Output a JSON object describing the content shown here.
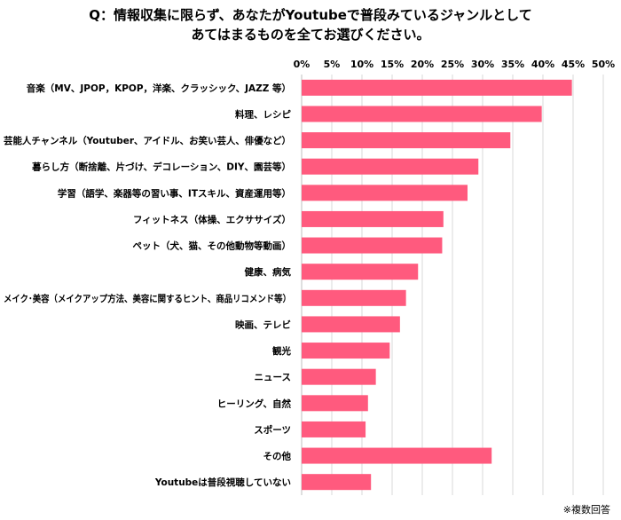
{
  "title_line1": "Q：情報収集に限らず、あなたがYoutubeで普段みているジャンルとして",
  "title_line2": "あてはまるものを全てお選びください。",
  "note": "※複数回答",
  "bar_color": "#ff5a7e",
  "chart_data": {
    "type": "bar",
    "orientation": "horizontal",
    "title": "Q：情報収集に限らず、あなたがYoutubeで普段みているジャンルとして あてはまるものを全てお選びください。",
    "xlim": [
      0,
      50
    ],
    "x_ticks": [
      "0%",
      "5%",
      "10%",
      "15%",
      "20%",
      "25%",
      "30%",
      "35%",
      "40%",
      "45%",
      "50%"
    ],
    "x_tick_values": [
      0,
      5,
      10,
      15,
      20,
      25,
      30,
      35,
      40,
      45,
      50
    ],
    "axis_position": "top",
    "grid": "vertical",
    "categories": [
      "音楽（MV、JPOP，KPOP，洋楽、クラッシック、JAZZ 等）",
      "料理、レシピ",
      "芸能人チャンネル（Youtuber、アイドル、お笑い芸人、俳優など）",
      "暮らし方（断捨離、片づけ、デコレーション、DIY、園芸等）",
      "学習（語学、楽器等の習い事、ITスキル、資産運用等）",
      "フィットネス（体操、エクササイズ）",
      "ペット（犬、猫、その他動物等動画）",
      "健康、病気",
      "メイク･美容（メイクアップ方法、美容に関するヒント、商品リコメンド等）",
      "映画、テレビ",
      "観光",
      "ニュース",
      "ヒーリング、自然",
      "スポーツ",
      "その他",
      "Youtubeは普段視聴していない"
    ],
    "values": [
      44.8,
      39.8,
      34.6,
      29.3,
      27.5,
      23.5,
      23.3,
      19.3,
      17.3,
      16.3,
      14.6,
      12.3,
      11.0,
      10.6,
      31.5,
      11.5
    ]
  }
}
